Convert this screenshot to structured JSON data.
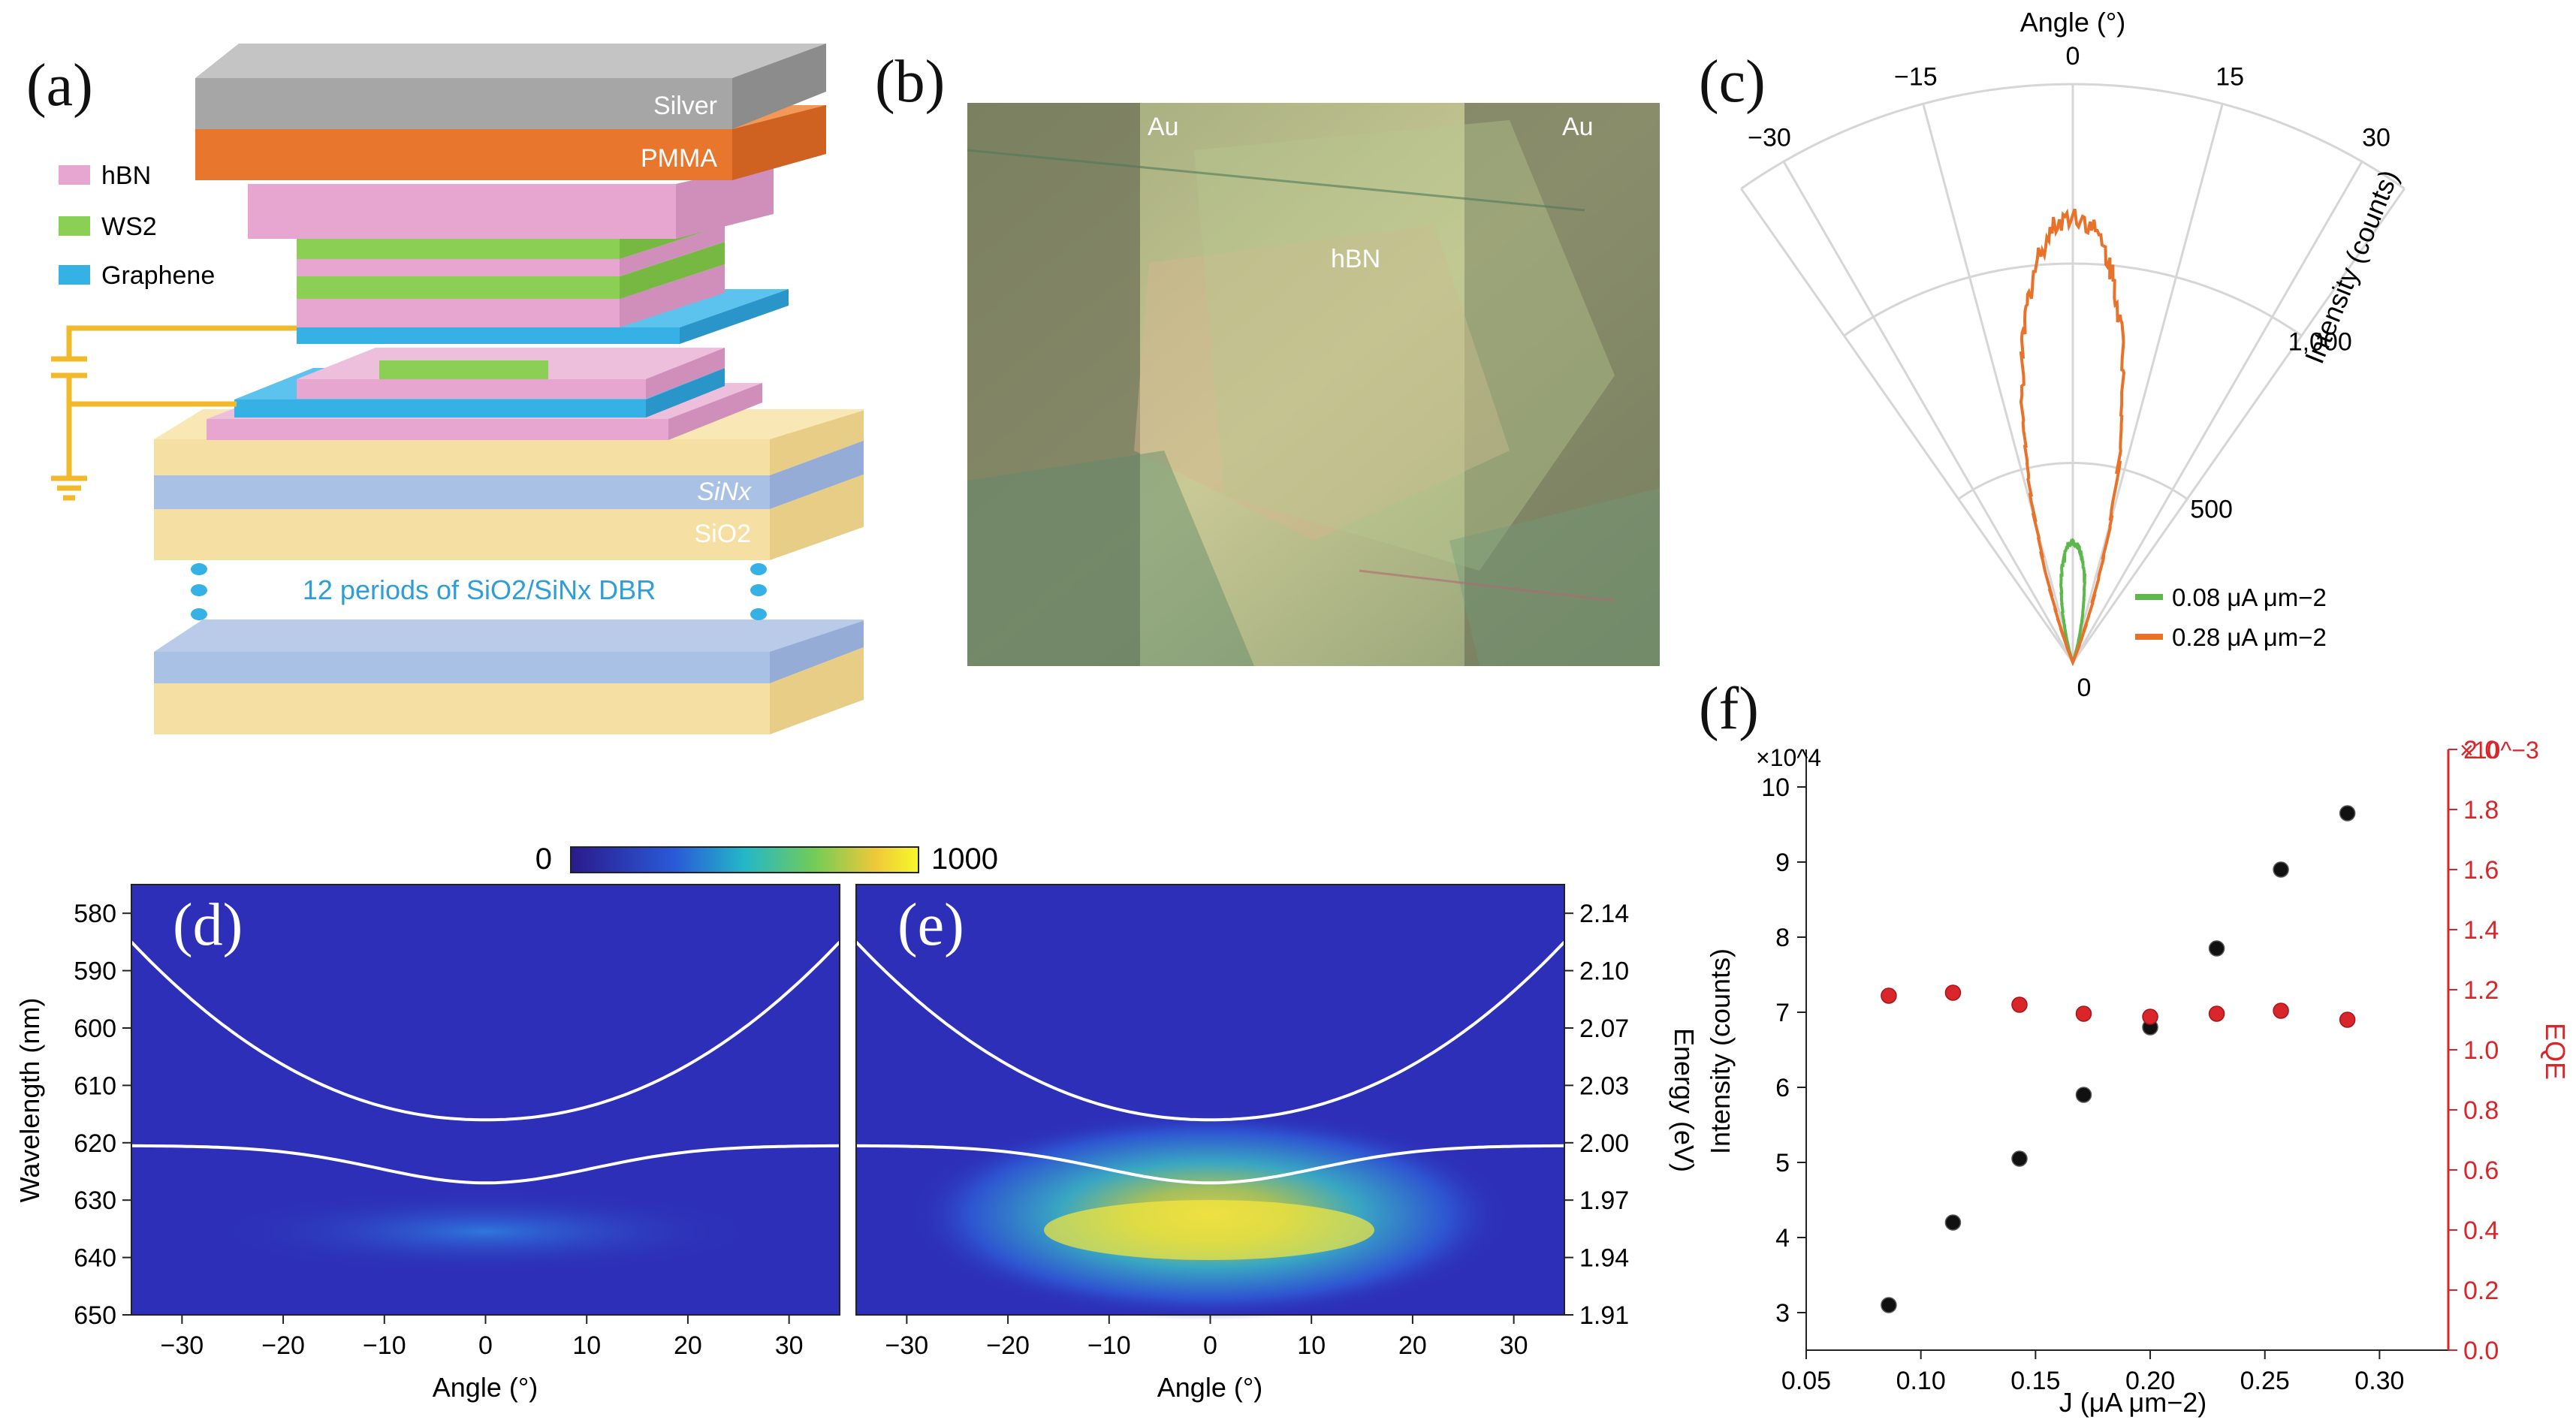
{
  "labels": {
    "a": "(a)",
    "b": "(b)",
    "c": "(c)",
    "d": "(d)",
    "e": "(e)",
    "f": "(f)"
  },
  "panel_a": {
    "layers": {
      "silver": "Silver",
      "pmma": "PMMA",
      "sinx": "SiNx",
      "sio2": "SiO2"
    },
    "legend": [
      "hBN",
      "WS2",
      "Graphene"
    ],
    "dbr": "12 periods of SiO2/SiNx DBR",
    "colors": {
      "silver": "#a6a6a6",
      "pmma": "#e8762c",
      "hbn": "#e6a6cf",
      "ws2": "#8ccf55",
      "graphene": "#36b1e6",
      "sio2": "#f6dfa2",
      "sinx": "#aac1e6",
      "wire": "#f2b92a"
    }
  },
  "panel_b": {
    "au_left": "Au",
    "au_right": "Au",
    "hbn": "hBN"
  },
  "chart_data": [
    {
      "id": "c",
      "type": "polar",
      "title": "Angle (°)",
      "rlabel": "Intensity (counts)",
      "theta_ticks": [
        "−30",
        "−15",
        "0",
        "15",
        "30"
      ],
      "r_ticks": [
        "0",
        "500",
        "1,000"
      ],
      "theta_range": [
        -35,
        35
      ],
      "r_range": [
        0,
        1450
      ],
      "series": [
        {
          "name": "0.08 μA μm−2",
          "color": "#5cb84a",
          "peak": 300
        },
        {
          "name": "0.28 μA μm−2",
          "color": "#e9722b",
          "peak": 1120
        }
      ]
    },
    {
      "id": "d",
      "type": "heatmap",
      "xlabel": "Angle (°)",
      "ylabel": "Wavelength (nm)",
      "xlim": [
        -35,
        35
      ],
      "ylim": [
        650,
        575
      ],
      "xticks": [
        "−30",
        "−20",
        "−10",
        "0",
        "10",
        "20",
        "30"
      ],
      "yticks": [
        "580",
        "590",
        "600",
        "610",
        "620",
        "630",
        "640",
        "650"
      ],
      "upper_branch_min_nm": 616,
      "lower_branch_min_nm": 627,
      "colorbar": {
        "min": "0",
        "max": "1000"
      }
    },
    {
      "id": "e",
      "type": "heatmap",
      "xlabel": "Angle (°)",
      "ylabel": "Energy (eV)",
      "xlim": [
        -35,
        35
      ],
      "xticks": [
        "−30",
        "−20",
        "−10",
        "0",
        "10",
        "20",
        "30"
      ],
      "yticks": [
        "2.14",
        "2.10",
        "2.07",
        "2.03",
        "2.00",
        "1.97",
        "1.94",
        "1.91"
      ]
    },
    {
      "id": "f",
      "type": "scatter",
      "xlabel": "J (μA μm−2)",
      "ylabel_left": "Intensity (counts)",
      "ylabel_right": "EQE",
      "xlim": [
        0.05,
        0.33
      ],
      "ylim_left": [
        2.5,
        10.5
      ],
      "ylim_right": [
        0,
        2.0
      ],
      "left_exponent": "×10^4",
      "right_exponent": "×10^−3",
      "xticks": [
        "0.05",
        "0.10",
        "0.15",
        "0.20",
        "0.25",
        "0.30"
      ],
      "yticks_left": [
        "3",
        "4",
        "5",
        "6",
        "7",
        "8",
        "9",
        "10"
      ],
      "yticks_right": [
        "0.0",
        "0.2",
        "0.4",
        "0.6",
        "0.8",
        "1.0",
        "1.2",
        "1.4",
        "1.6",
        "1.8",
        "2.0"
      ],
      "series": [
        {
          "name": "Intensity",
          "axis": "left",
          "color": "#111111",
          "x": [
            0.086,
            0.114,
            0.143,
            0.171,
            0.2,
            0.229,
            0.257,
            0.286
          ],
          "y": [
            3.1,
            4.2,
            5.05,
            5.9,
            6.8,
            7.85,
            8.9,
            9.65
          ]
        },
        {
          "name": "EQE",
          "axis": "right",
          "color": "#d8262b",
          "x": [
            0.086,
            0.114,
            0.143,
            0.171,
            0.2,
            0.229,
            0.257,
            0.286
          ],
          "y": [
            1.18,
            1.19,
            1.15,
            1.12,
            1.11,
            1.12,
            1.13,
            1.1
          ]
        }
      ]
    }
  ]
}
